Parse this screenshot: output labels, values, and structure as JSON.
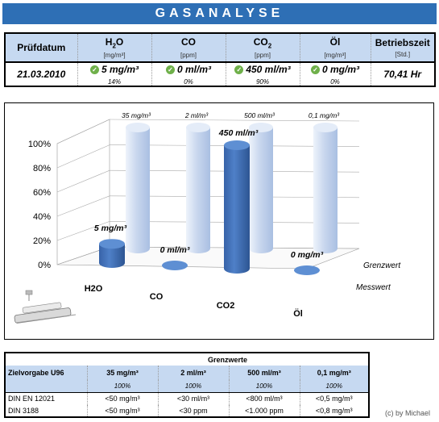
{
  "title": "GASANALYSE",
  "top_table": {
    "date_header": "Prüfdatum",
    "date_value": "21.03.2010",
    "columns": [
      {
        "name": "H",
        "sub": "2",
        "name_end": "O",
        "unit": "[mg/m³]",
        "value": "5 mg/m³",
        "percent": "14%",
        "check": true
      },
      {
        "name": "CO",
        "sub": "",
        "name_end": "",
        "unit": "[ppm]",
        "value": "0 ml/m³",
        "percent": "0%",
        "check": true
      },
      {
        "name": "CO",
        "sub": "2",
        "name_end": "",
        "unit": "[ppm]",
        "value": "450 ml/m³",
        "percent": "90%",
        "check": true
      },
      {
        "name": "Öl",
        "sub": "",
        "name_end": "",
        "unit": "[mg/m³]",
        "value": "0 mg/m³",
        "percent": "0%",
        "check": true
      }
    ],
    "hours_header": "Betriebszeit",
    "hours_unit": "[Std.]",
    "hours_value": "70,41 Hr",
    "check_icon": "check-circle-icon",
    "check_color": "#6fb04a"
  },
  "chart_data": {
    "type": "bar",
    "subtype": "3d-cylinder",
    "categories": [
      "H2O",
      "CO",
      "CO2",
      "Öl"
    ],
    "series": [
      {
        "name": "Grenzwert",
        "values": [
          100,
          100,
          100,
          100
        ],
        "labels": [
          "35 mg/m³",
          "2 ml/m³",
          "500 ml/m³",
          "0,1 mg/m³"
        ],
        "color": "#c9d7ee"
      },
      {
        "name": "Messwert",
        "values": [
          14,
          0,
          90,
          0
        ],
        "labels": [
          "5 mg/m³",
          "0 ml/m³",
          "450 ml/m³",
          "0 mg/m³"
        ],
        "color": "#3b6cb3"
      }
    ],
    "y_ticks": [
      "0%",
      "20%",
      "40%",
      "60%",
      "80%",
      "100%"
    ],
    "ylim": [
      0,
      100
    ],
    "grid": true,
    "legend": "series labels on depth axis"
  },
  "limits_table": {
    "group_header": "Grenzwerte",
    "row_label": "Zielvorgabe U96",
    "targets": [
      "35 mg/m³",
      "2 ml/m³",
      "500 ml/m³",
      "0,1 mg/m³"
    ],
    "percents": [
      "100%",
      "100%",
      "100%",
      "100%"
    ],
    "norms": [
      {
        "name": "DIN EN 12021",
        "values": [
          "<50 mg/m³",
          "<30 ml/m³",
          "<800 ml/m³",
          "<0,5 mg/m³"
        ]
      },
      {
        "name": "DIN 3188",
        "values": [
          "<50 mg/m³",
          "<30 ppm",
          "<1.000 ppm",
          "<0,8 mg/m³"
        ]
      }
    ]
  },
  "credit": "(c) by Michael"
}
